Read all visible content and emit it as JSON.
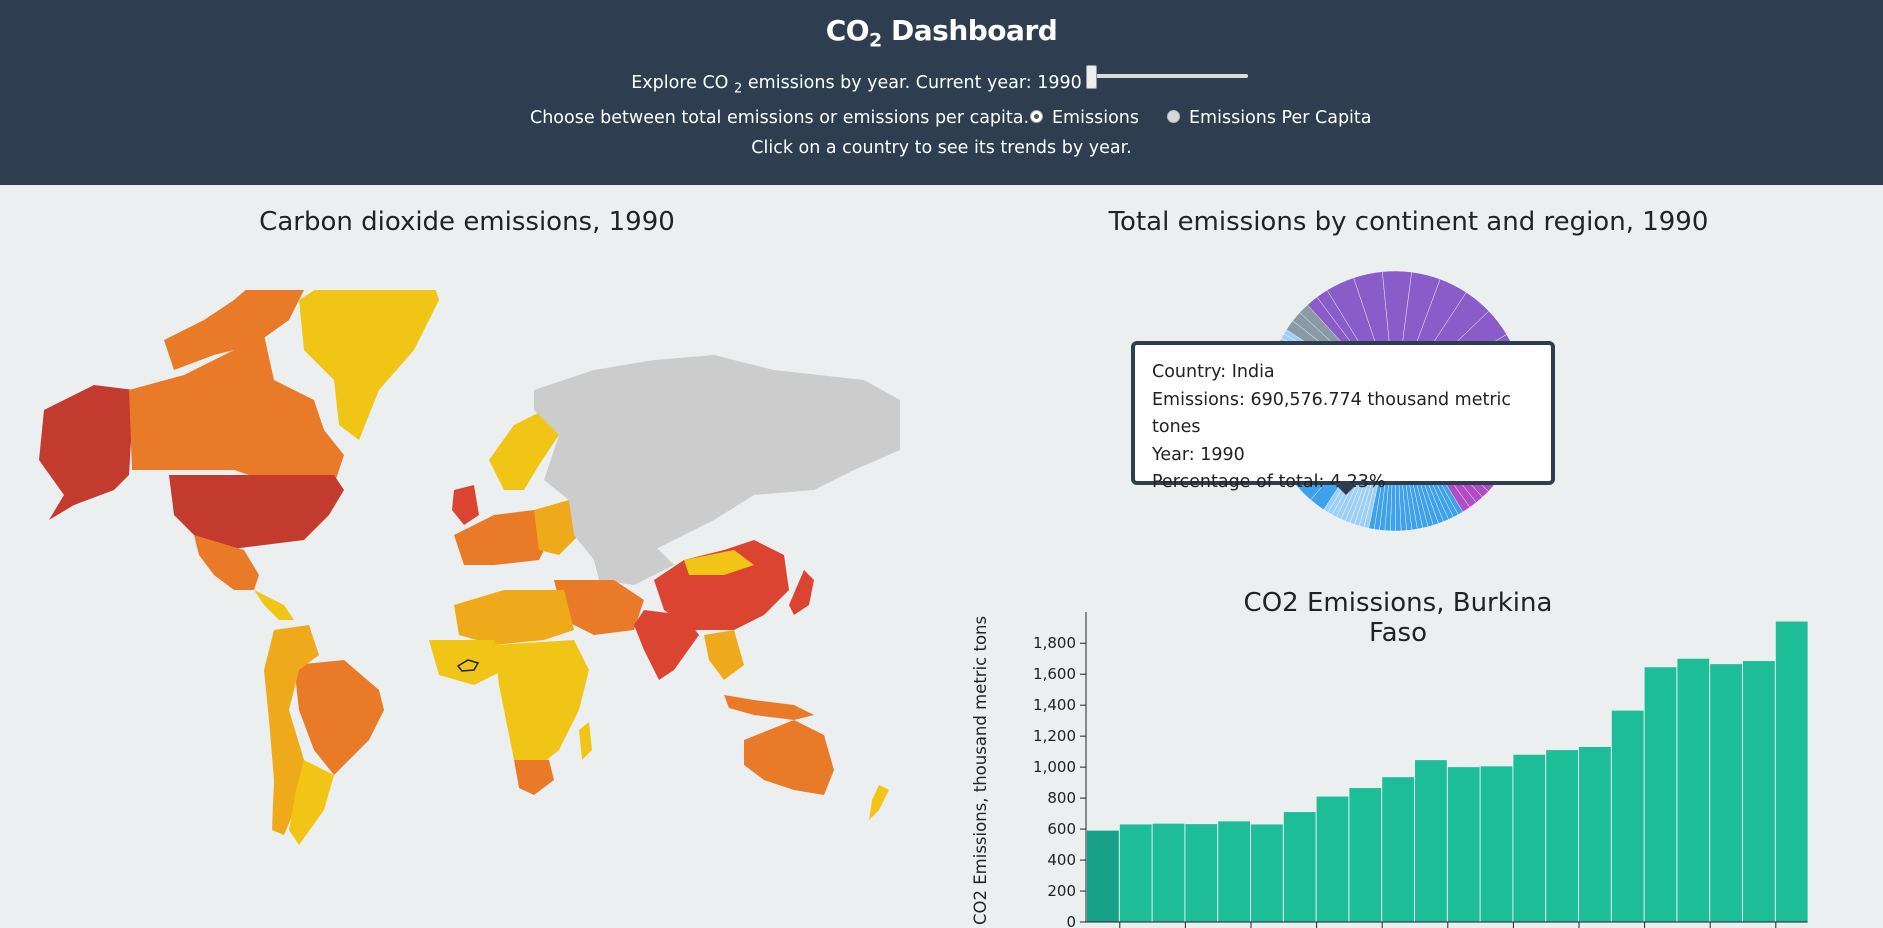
{
  "header": {
    "title_prefix": "CO",
    "title_sub": "2",
    "title_suffix": "Dashboard",
    "explore_prefix": "Explore CO",
    "explore_sub": "2",
    "explore_suffix": "emissions by year. Current year: 1990",
    "choose_text": "Choose between total emissions or emissions per capita.",
    "radio_emissions": "Emissions",
    "radio_per_capita": "Emissions Per Capita",
    "selected_mode": "Emissions",
    "click_text": "Click on a country to see its trends by year.",
    "year_slider": {
      "value": 1990,
      "position_fraction": 0.0
    }
  },
  "map": {
    "title": "Carbon dioxide emissions, 1990",
    "colors": {
      "no_data": "#cccccc",
      "low": "#f1c515",
      "mid_low": "#efaa1c",
      "mid": "#e87a28",
      "high": "#dc4432",
      "highest": "#c23b2e"
    },
    "selected_country": "Burkina Faso"
  },
  "pie": {
    "title": "Total emissions by continent and region, 1990",
    "colors": {
      "purple": "#8a5cc9",
      "magenta": "#b14cc4",
      "teal": "#2aa79b",
      "blue": "#3fa1ea",
      "light_blue": "#9ecff5",
      "gray": "#8a9aa4"
    }
  },
  "tooltip": {
    "country": "Country: India",
    "emissions": "Emissions: 690,576.774 thousand metric tones",
    "year": "Year: 1990",
    "percentage": "Percentage of total: 4.23%"
  },
  "bar": {
    "title": "CO2 Emissions, Burkina Faso",
    "ylabel": "CO2 Emissions, thousand metric tons",
    "colors": {
      "bar": "#1dbd98",
      "highlight": "#17a287"
    }
  },
  "chart_data": {
    "type": "bar",
    "title": "CO2 Emissions, Burkina Faso",
    "xlabel": "",
    "ylabel": "CO2 Emissions, thousand metric tons",
    "ylim": [
      0,
      1950
    ],
    "yticks": [
      "0",
      "200",
      "400",
      "600",
      "800",
      "1,000",
      "1,200",
      "1,400",
      "1,600",
      "1,800"
    ],
    "values": [
      590,
      630,
      635,
      632,
      650,
      630,
      710,
      810,
      865,
      935,
      1045,
      1000,
      1005,
      1080,
      1110,
      1130,
      1365,
      1645,
      1700,
      1665,
      1685,
      1940
    ],
    "highlighted_index": 0
  }
}
